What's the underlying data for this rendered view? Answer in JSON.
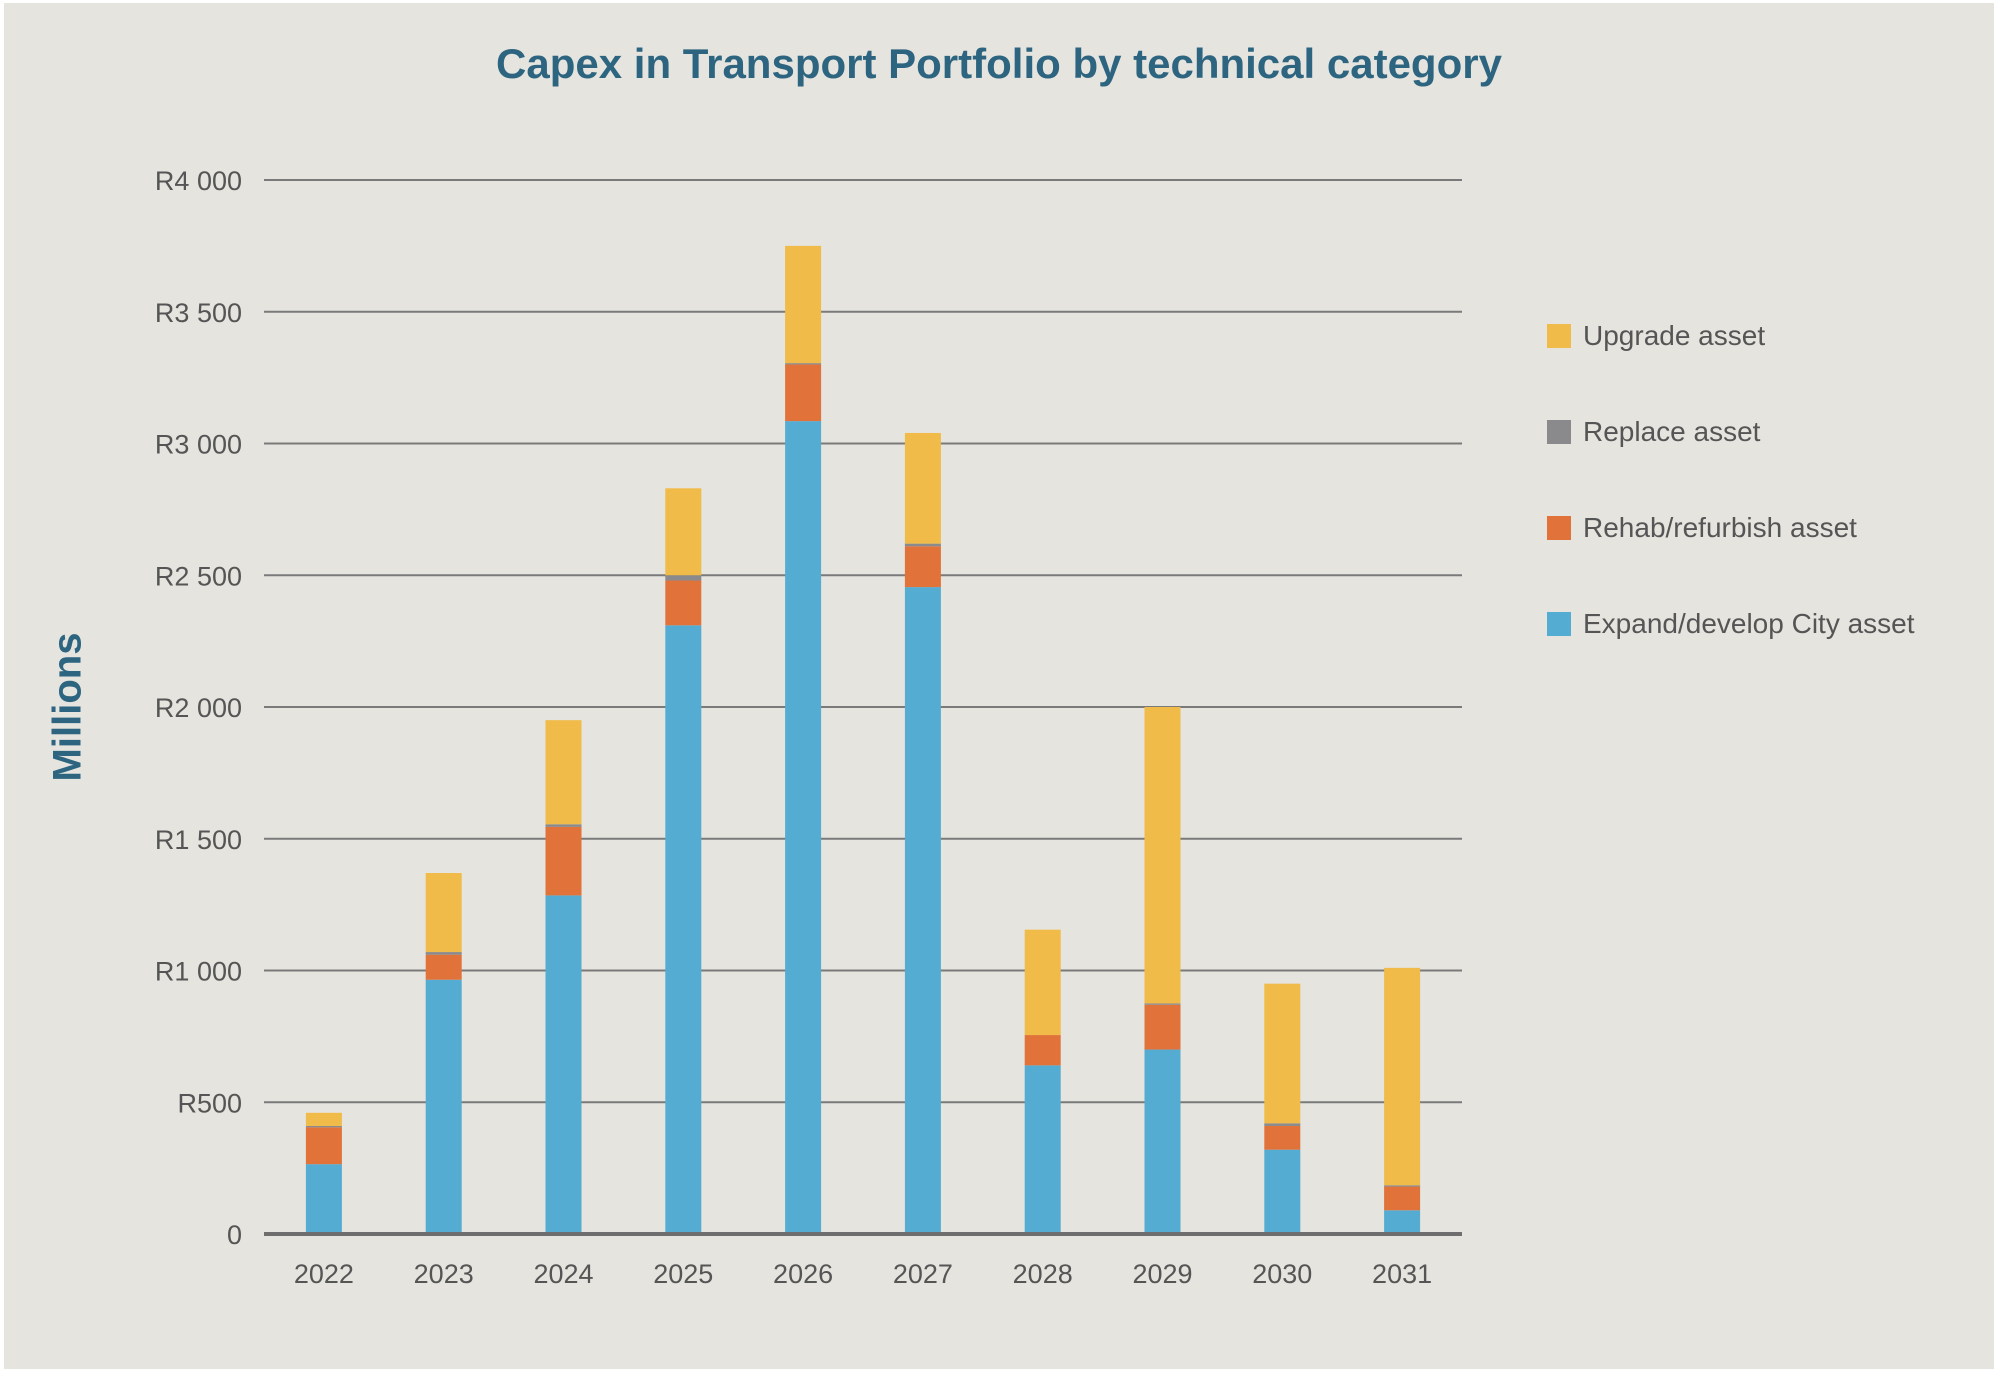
{
  "chart_data": {
    "type": "bar",
    "stacked": true,
    "title": "Capex in Transport Portfolio by technical category",
    "xlabel": "",
    "ylabel": "Millions",
    "ylim": [
      0,
      4000
    ],
    "yticks": [
      {
        "value": 0,
        "label": "0"
      },
      {
        "value": 500,
        "label": "R500"
      },
      {
        "value": 1000,
        "label": "R1 000"
      },
      {
        "value": 1500,
        "label": "R1 500"
      },
      {
        "value": 2000,
        "label": "R2 000"
      },
      {
        "value": 2500,
        "label": "R2 500"
      },
      {
        "value": 3000,
        "label": "R3 000"
      },
      {
        "value": 3500,
        "label": "R3 500"
      },
      {
        "value": 4000,
        "label": "R4 000"
      }
    ],
    "grid": true,
    "legend_position": "right",
    "categories": [
      "2022",
      "2023",
      "2024",
      "2025",
      "2026",
      "2027",
      "2028",
      "2029",
      "2030",
      "2031"
    ],
    "series": [
      {
        "name": "Expand/develop City asset",
        "color": "#55acd2",
        "values": [
          265,
          965,
          1285,
          2310,
          3085,
          2455,
          640,
          700,
          320,
          90
        ]
      },
      {
        "name": "Rehab/refurbish asset",
        "color": "#e0723a",
        "values": [
          140,
          95,
          260,
          170,
          215,
          155,
          115,
          170,
          90,
          90
        ]
      },
      {
        "name": "Replace asset",
        "color": "#8a8a8c",
        "values": [
          5,
          10,
          10,
          20,
          5,
          10,
          0,
          5,
          10,
          5
        ]
      },
      {
        "name": "Upgrade asset",
        "color": "#f0bb48",
        "values": [
          50,
          300,
          395,
          330,
          445,
          420,
          400,
          1125,
          530,
          825
        ]
      }
    ],
    "legend_order": [
      "Upgrade asset",
      "Replace asset",
      "Rehab/refurbish asset",
      "Expand/develop City asset"
    ],
    "colors": {
      "title": "#2d6580",
      "axis_text": "#555555",
      "gridline": "#7a7a7a",
      "background": "#e5e4df"
    }
  }
}
